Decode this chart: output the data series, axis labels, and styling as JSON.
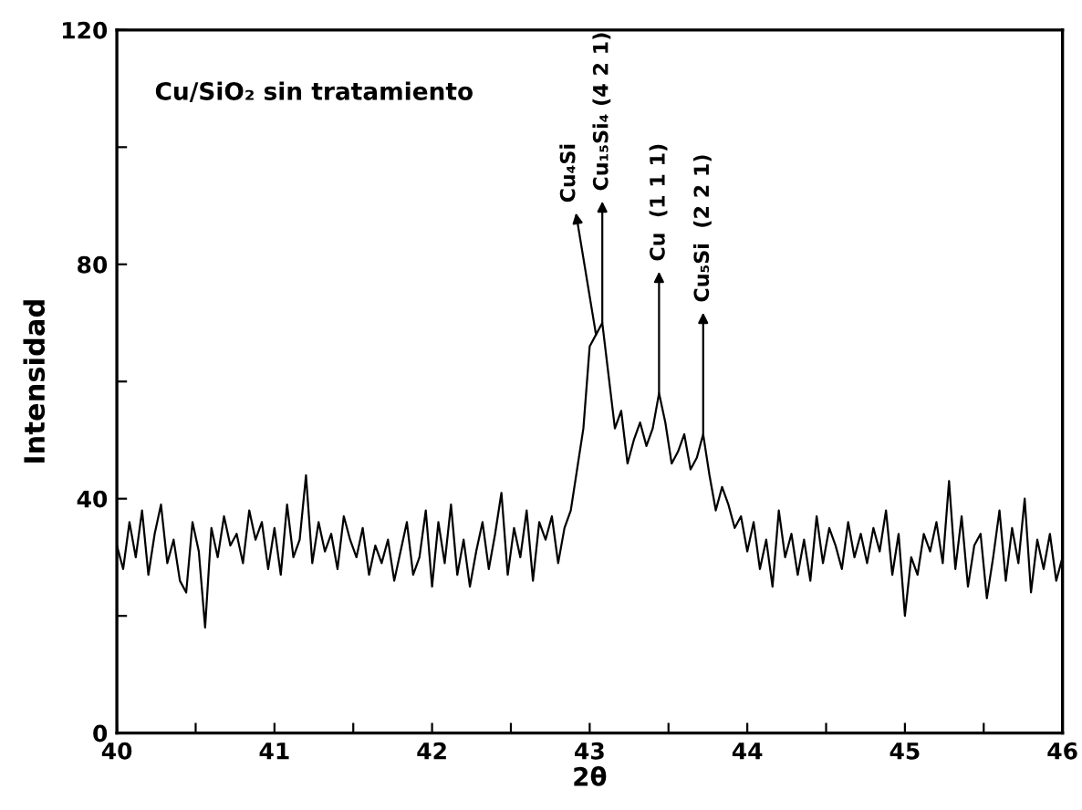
{
  "chart_data": {
    "type": "line",
    "xlabel": "2θ",
    "ylabel": "Intensidad",
    "xlim": [
      40,
      46
    ],
    "ylim": [
      0,
      120
    ],
    "xticks": [
      40,
      {
        "value": 40.5,
        "label": null
      },
      41,
      {
        "value": 41.5,
        "label": null
      },
      42,
      {
        "value": 42.5,
        "label": null
      },
      43,
      {
        "value": 43.5,
        "label": null
      },
      44,
      {
        "value": 44.5,
        "label": null
      },
      45,
      {
        "value": 45.5,
        "label": null
      },
      46
    ],
    "yticks": [
      0,
      {
        "value": 20,
        "label": null
      },
      40,
      {
        "value": 60,
        "label": null
      },
      80,
      {
        "value": 100,
        "label": null
      },
      120
    ],
    "grid": false,
    "legend": false,
    "marker": "none",
    "line_style": "solid",
    "annotations": [
      "Cu/SiO₂ sin tratamiento",
      {
        "text": "Cu₄Si",
        "x": 43.04,
        "y": 68
      },
      {
        "text": "Cu₁₅Si₄ (4 2 1)",
        "x": 43.08,
        "y": 70
      },
      {
        "text": "Cu  (1 1 1)",
        "x": 43.44,
        "y": 58
      },
      {
        "text": "Cu₅Si  (2 2 1)",
        "x": 43.72,
        "y": 51
      }
    ],
    "series": [
      {
        "color": "#000000",
        "x": [
          40.0,
          40.04,
          40.08,
          40.12,
          40.16,
          40.2,
          40.24,
          40.28,
          40.32,
          40.36,
          40.4,
          40.44,
          40.48,
          40.52,
          40.56,
          40.6,
          40.64,
          40.68,
          40.72,
          40.76,
          40.8,
          40.84,
          40.88,
          40.92,
          40.96,
          41.0,
          41.04,
          41.08,
          41.12,
          41.16,
          41.2,
          41.24,
          41.28,
          41.32,
          41.36,
          41.4,
          41.44,
          41.48,
          41.52,
          41.56,
          41.6,
          41.64,
          41.68,
          41.72,
          41.76,
          41.8,
          41.84,
          41.88,
          41.92,
          41.96,
          42.0,
          42.04,
          42.08,
          42.12,
          42.16,
          42.2,
          42.24,
          42.28,
          42.32,
          42.36,
          42.4,
          42.44,
          42.48,
          42.52,
          42.56,
          42.6,
          42.64,
          42.68,
          42.72,
          42.76,
          42.8,
          42.84,
          42.88,
          42.92,
          42.96,
          43.0,
          43.04,
          43.08,
          43.12,
          43.16,
          43.2,
          43.24,
          43.28,
          43.32,
          43.36,
          43.4,
          43.44,
          43.48,
          43.52,
          43.56,
          43.6,
          43.64,
          43.68,
          43.72,
          43.76,
          43.8,
          43.84,
          43.88,
          43.92,
          43.96,
          44.0,
          44.04,
          44.08,
          44.12,
          44.16,
          44.2,
          44.24,
          44.28,
          44.32,
          44.36,
          44.4,
          44.44,
          44.48,
          44.52,
          44.56,
          44.6,
          44.64,
          44.68,
          44.72,
          44.76,
          44.8,
          44.84,
          44.88,
          44.92,
          44.96,
          45.0,
          45.04,
          45.08,
          45.12,
          45.16,
          45.2,
          45.24,
          45.28,
          45.32,
          45.36,
          45.4,
          45.44,
          45.48,
          45.52,
          45.56,
          45.6,
          45.64,
          45.68,
          45.72,
          45.76,
          45.8,
          45.84,
          45.88,
          45.92,
          45.96,
          46.0
        ],
        "values": [
          32,
          28,
          36,
          30,
          38,
          27,
          34,
          39,
          29,
          33,
          26,
          24,
          36,
          31,
          18,
          35,
          30,
          37,
          32,
          34,
          29,
          38,
          33,
          36,
          28,
          35,
          27,
          39,
          30,
          33,
          44,
          29,
          36,
          31,
          34,
          28,
          37,
          33,
          30,
          35,
          27,
          32,
          29,
          33,
          26,
          31,
          36,
          27,
          30,
          38,
          25,
          36,
          29,
          39,
          27,
          33,
          25,
          31,
          36,
          28,
          34,
          41,
          27,
          35,
          30,
          38,
          26,
          36,
          33,
          37,
          29,
          35,
          38,
          45,
          52,
          66,
          68,
          70,
          61,
          52,
          55,
          46,
          50,
          53,
          49,
          52,
          58,
          53,
          46,
          48,
          51,
          45,
          47,
          51,
          44,
          38,
          42,
          39,
          35,
          37,
          31,
          36,
          28,
          33,
          25,
          38,
          30,
          34,
          27,
          33,
          26,
          37,
          29,
          35,
          32,
          28,
          36,
          30,
          34,
          29,
          35,
          31,
          38,
          27,
          34,
          20,
          30,
          27,
          34,
          31,
          36,
          29,
          43,
          28,
          37,
          25,
          32,
          34,
          23,
          30,
          38,
          26,
          35,
          29,
          40,
          24,
          33,
          28,
          34,
          26,
          30
        ]
      }
    ]
  }
}
